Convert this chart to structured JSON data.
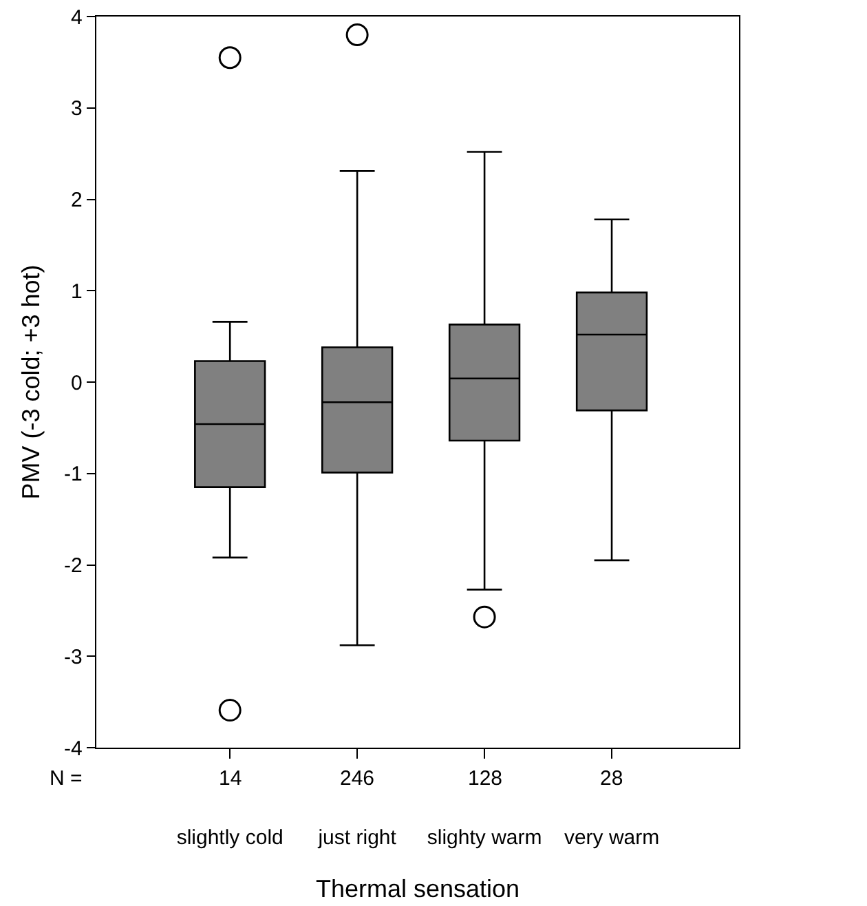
{
  "chart_data": {
    "type": "box",
    "xlabel": "Thermal sensation",
    "ylabel": "PMV (-3 cold; +3 hot)",
    "categories": [
      "slightly cold",
      "just right",
      "slighty warm",
      "very warm"
    ],
    "boxes": [
      {
        "low": -1.92,
        "q1": -1.15,
        "median": -0.46,
        "q3": 0.23,
        "high": 0.66,
        "outliers": [
          3.55,
          -3.59
        ]
      },
      {
        "low": -2.88,
        "q1": -0.99,
        "median": -0.22,
        "q3": 0.38,
        "high": 2.31,
        "outliers": [
          3.8
        ]
      },
      {
        "low": -2.27,
        "q1": -0.64,
        "median": 0.04,
        "q3": 0.63,
        "high": 2.52,
        "outliers": [
          -2.57
        ]
      },
      {
        "low": -1.95,
        "q1": -0.31,
        "median": 0.52,
        "q3": 0.98,
        "high": 1.78
      }
    ],
    "color": "#808080",
    "ylim": [
      -4,
      4
    ],
    "yticks": [
      -4,
      -3,
      -2,
      -1,
      0,
      1,
      2,
      3,
      4
    ],
    "grid": false,
    "marker": "circle",
    "annotations": [
      "N =",
      {
        "text": "14",
        "x": "slightly cold"
      },
      {
        "text": "246",
        "x": "just right"
      },
      {
        "text": "128",
        "x": "slighty warm"
      },
      {
        "text": "28",
        "x": "very warm"
      }
    ]
  }
}
